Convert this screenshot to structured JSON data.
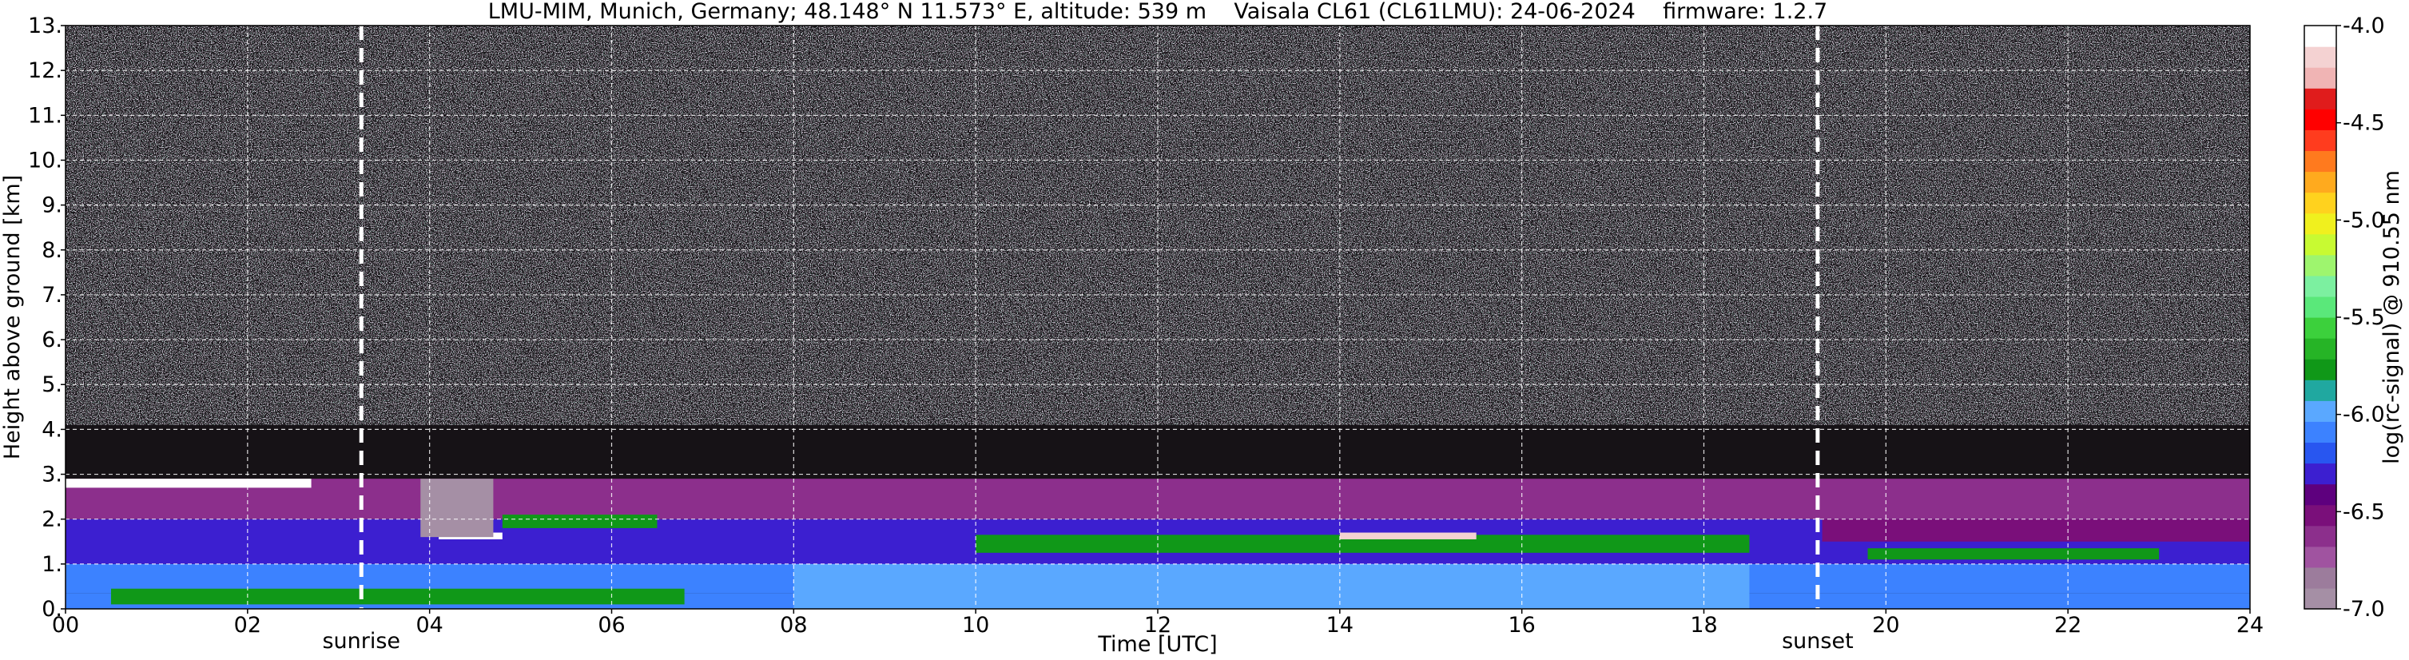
{
  "chart_data": {
    "type": "heatmap",
    "title": "LMU-MIM, Munich, Germany; 48.148° N 11.573° E, altitude: 539 m    Vaisala CL61 (CL61LMU): 24-06-2024    firmware: 1.2.7",
    "xlabel": "Time [UTC]",
    "ylabel": "Height above ground [km]",
    "xlim": [
      0,
      24
    ],
    "ylim": [
      0,
      13
    ],
    "x_tick_values": [
      0,
      2,
      4,
      6,
      8,
      10,
      12,
      14,
      16,
      18,
      20,
      22,
      24
    ],
    "x_tick_labels": [
      "00",
      "02",
      "04",
      "06",
      "08",
      "10",
      "12",
      "14",
      "16",
      "18",
      "20",
      "22",
      "24"
    ],
    "y_tick_values": [
      0,
      1,
      2,
      3,
      4,
      5,
      6,
      7,
      8,
      9,
      10,
      11,
      12,
      13
    ],
    "y_tick_labels": [
      "0.",
      "1.",
      "2.",
      "3.",
      "4.",
      "5.",
      "6.",
      "7.",
      "8.",
      "9.",
      "10.",
      "11.",
      "12.",
      "13."
    ],
    "grid": true,
    "colorbar": {
      "label": "log(rc-signal) @ 910.55 nm",
      "range": [
        -7.0,
        -4.0
      ],
      "tick_values": [
        -7.0,
        -6.5,
        -6.0,
        -5.5,
        -5.0,
        -4.5,
        -4.0
      ],
      "tick_labels": [
        "-7.0",
        "-6.5",
        "-6.0",
        "-5.5",
        "-5.0",
        "-4.5",
        "-4.0"
      ],
      "colors": [
        "#a58fa5",
        "#9c7c9c",
        "#a053a0",
        "#8c2f8c",
        "#7a0f7a",
        "#5e007e",
        "#3c1fd0",
        "#2856f0",
        "#3c82ff",
        "#5aa8ff",
        "#20a8a0",
        "#109818",
        "#26b426",
        "#3cd03c",
        "#5ae87a",
        "#7cf0a0",
        "#9ef56e",
        "#c8fa32",
        "#f0f01e",
        "#ffd21e",
        "#ffaa1e",
        "#ff7a1e",
        "#ff3c1e",
        "#ff0000",
        "#e01c1c",
        "#f0b4b4",
        "#f4d2d2",
        "#ffffff"
      ]
    },
    "annotations": [
      {
        "text": "sunrise",
        "x": 3.25
      },
      {
        "text": "sunset",
        "x": 19.25
      }
    ],
    "layers": [
      {
        "x0": 0,
        "x1": 24,
        "y0": 0,
        "y1": 0.35,
        "value": -6.05
      },
      {
        "x0": 0,
        "x1": 24,
        "y0": 0.35,
        "y1": 1.0,
        "value": -6.1
      },
      {
        "x0": 8.0,
        "x1": 18.5,
        "y0": 0.0,
        "y1": 1.3,
        "value": -5.95
      },
      {
        "x0": 0,
        "x1": 24,
        "y0": 1.0,
        "y1": 2.0,
        "value": -6.3
      },
      {
        "x0": 0,
        "x1": 24,
        "y0": 2.0,
        "y1": 2.9,
        "value": -6.6
      },
      {
        "x0": 0.5,
        "x1": 6.8,
        "y0": 0.1,
        "y1": 0.45,
        "value": -5.75
      },
      {
        "x0": 4.8,
        "x1": 6.5,
        "y0": 1.8,
        "y1": 2.1,
        "value": -5.8
      },
      {
        "x0": 10.0,
        "x1": 18.5,
        "y0": 1.25,
        "y1": 1.65,
        "value": -5.8
      },
      {
        "x0": 19.8,
        "x1": 23.0,
        "y0": 1.1,
        "y1": 1.35,
        "value": -5.8
      },
      {
        "x0": 19.3,
        "x1": 24,
        "y0": 1.5,
        "y1": 2.0,
        "value": -6.55
      },
      {
        "x0": 0,
        "x1": 2.7,
        "y0": 2.7,
        "y1": 2.9,
        "value": -4.0
      },
      {
        "x0": 4.1,
        "x1": 4.8,
        "y0": 1.55,
        "y1": 1.7,
        "value": -4.0
      },
      {
        "x0": 14.0,
        "x1": 15.5,
        "y0": 1.55,
        "y1": 1.7,
        "value": -4.2
      },
      {
        "x0": 3.9,
        "x1": 4.7,
        "y0": 1.6,
        "y1": 2.9,
        "value": -7.0
      }
    ]
  }
}
